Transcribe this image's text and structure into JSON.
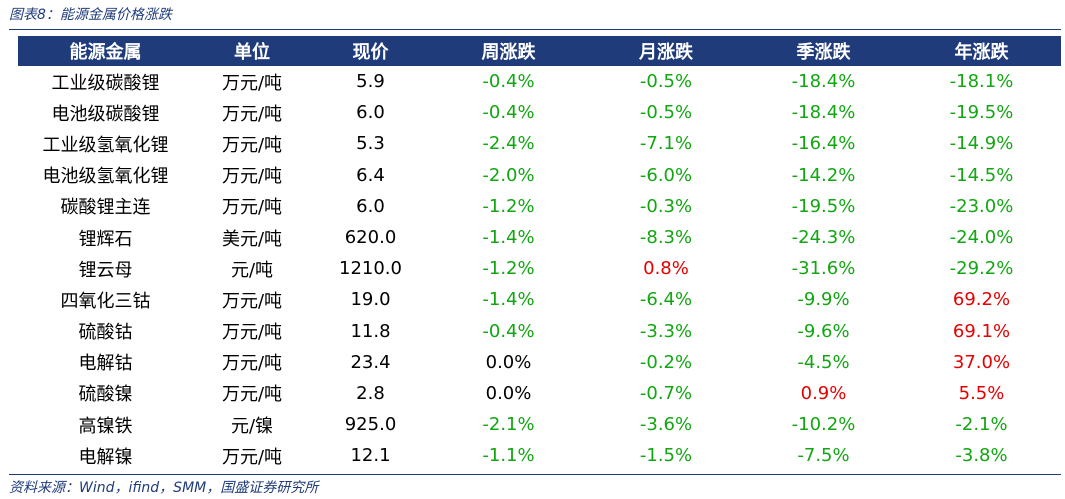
{
  "figure_title": "图表8：能源金属价格涨跌",
  "source_note": "资料来源：Wind，ifind，SMM，国盛证券研究所",
  "colors": {
    "header_bg": "#1f3b7a",
    "negative": "#12a612",
    "positive": "#e60000"
  },
  "table": {
    "headers": [
      "能源金属",
      "单位",
      "现价",
      "周涨跌",
      "月涨跌",
      "季涨跌",
      "年涨跌"
    ],
    "rows": [
      [
        "工业级碳酸锂",
        "万元/吨",
        "5.9",
        "-0.4%",
        "-0.5%",
        "-18.4%",
        "-18.1%"
      ],
      [
        "电池级碳酸锂",
        "万元/吨",
        "6.0",
        "-0.4%",
        "-0.5%",
        "-18.4%",
        "-19.5%"
      ],
      [
        "工业级氢氧化锂",
        "万元/吨",
        "5.3",
        "-2.4%",
        "-7.1%",
        "-16.4%",
        "-14.9%"
      ],
      [
        "电池级氢氧化锂",
        "万元/吨",
        "6.4",
        "-2.0%",
        "-6.0%",
        "-14.2%",
        "-14.5%"
      ],
      [
        "碳酸锂主连",
        "万元/吨",
        "6.0",
        "-1.2%",
        "-0.3%",
        "-19.5%",
        "-23.0%"
      ],
      [
        "锂辉石",
        "美元/吨",
        "620.0",
        "-1.4%",
        "-8.3%",
        "-24.3%",
        "-24.0%"
      ],
      [
        "锂云母",
        "元/吨",
        "1210.0",
        "-1.2%",
        "0.8%",
        "-31.6%",
        "-29.2%"
      ],
      [
        "四氧化三钴",
        "万元/吨",
        "19.0",
        "-1.4%",
        "-6.4%",
        "-9.9%",
        "69.2%"
      ],
      [
        "硫酸钴",
        "万元/吨",
        "11.8",
        "-0.4%",
        "-3.3%",
        "-9.6%",
        "69.1%"
      ],
      [
        "电解钴",
        "万元/吨",
        "23.4",
        "0.0%",
        "-0.2%",
        "-4.5%",
        "37.0%"
      ],
      [
        "硫酸镍",
        "万元/吨",
        "2.8",
        "0.0%",
        "-0.7%",
        "0.9%",
        "5.5%"
      ],
      [
        "高镍铁",
        "元/镍",
        "925.0",
        "-2.1%",
        "-3.6%",
        "-10.2%",
        "-2.1%"
      ],
      [
        "电解镍",
        "万元/吨",
        "12.1",
        "-1.1%",
        "-1.5%",
        "-7.5%",
        "-3.8%"
      ]
    ]
  }
}
